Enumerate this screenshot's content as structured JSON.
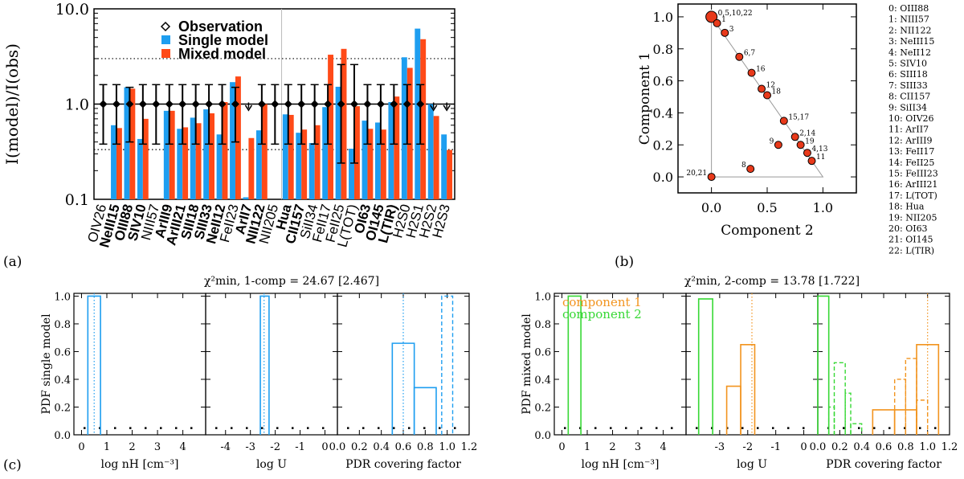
{
  "panel_labels": {
    "a": "(a)",
    "b": "(b)",
    "c": "(c)"
  },
  "colors": {
    "single": "#1e9ef0",
    "mixed": "#ff4a18",
    "comp1": "#f2941f",
    "comp2": "#37d835",
    "dot": "#e8391a"
  },
  "chart_data": [
    {
      "id": "a",
      "type": "bar",
      "title": "",
      "ylabel": "I(model)/I(obs)",
      "yscale": "log",
      "ylim": [
        0.1,
        10
      ],
      "yticks": [
        "0.1",
        "1.0",
        "10.0"
      ],
      "ytick_values": [
        0.1,
        1,
        10
      ],
      "dotted_lines": [
        0.333,
        3.0
      ],
      "legend": {
        "observation": "Observation",
        "single": "Single model",
        "mixed": "Mixed model"
      },
      "categories": [
        "OIV26",
        "NeIII15",
        "OIII88",
        "SIV10",
        "NIII57",
        "ArIII9",
        "ArIII21",
        "SIII18",
        "SIII33",
        "NeII12",
        "FeII23",
        "ArII7",
        "NII122",
        "NII205",
        "Hua",
        "CII157",
        "SiII34",
        "FeII17",
        "FeII25",
        "L(TOT)",
        "OI63",
        "OI145",
        "L(TIR)",
        "H2S0",
        "H2S1",
        "H2S2",
        "H2S3"
      ],
      "bold": [
        false,
        true,
        true,
        true,
        false,
        true,
        true,
        true,
        true,
        true,
        false,
        true,
        true,
        false,
        true,
        true,
        false,
        false,
        false,
        false,
        true,
        true,
        true,
        false,
        false,
        false,
        false
      ],
      "series": [
        {
          "name": "Single model",
          "values": [
            null,
            0.6,
            1.5,
            0.43,
            null,
            0.85,
            0.55,
            0.72,
            0.88,
            0.48,
            1.7,
            0.105,
            0.53,
            null,
            0.78,
            0.5,
            0.39,
            0.93,
            1.52,
            0.34,
            0.67,
            0.64,
            1.05,
            3.1,
            6.2,
            1.0,
            0.48
          ]
        },
        {
          "name": "Mixed model",
          "values": [
            null,
            0.56,
            1.45,
            0.7,
            null,
            0.85,
            0.57,
            0.63,
            0.8,
            1.05,
            1.95,
            0.44,
            1.0,
            null,
            0.77,
            0.54,
            0.6,
            3.3,
            3.8,
            0.95,
            0.55,
            0.54,
            1.2,
            2.4,
            4.8,
            0.75,
            0.33
          ]
        }
      ],
      "observation": {
        "name": "Observation",
        "errbar": [
          "0.38-1.6",
          "0.38-1.6",
          "0.4-1.5",
          "0.38-1.6",
          "0.38-1.6",
          "0.38-1.6",
          "0.38-1.6",
          "0.38-1.6",
          "0.38-1.6",
          "0.38-1.6",
          "0.4-1.5",
          "upper",
          "0.38-1.6",
          "0.38-1.6",
          "0.38-1.6",
          "0.38-1.6",
          "0.38-1.6",
          "0.38-1.6",
          "0.24-2.6",
          "0.24-2.6",
          "0.38-1.6",
          "0.38-1.6",
          "0.38-1.6",
          "0.38-1.6",
          "0.38-1.6",
          "upper",
          "upper"
        ]
      }
    },
    {
      "id": "b",
      "type": "scatter",
      "xlabel": "Component 2",
      "ylabel": "Component 1",
      "xlim": [
        -0.3,
        1.3
      ],
      "ylim": [
        -0.1,
        1.08
      ],
      "xticks": [
        "0.0",
        "0.5",
        "1.0"
      ],
      "xtick_values": [
        0,
        0.5,
        1
      ],
      "yticks": [
        "0.0",
        "0.2",
        "0.4",
        "0.6",
        "0.8",
        "1.0"
      ],
      "ytick_values": [
        0,
        0.2,
        0.4,
        0.6,
        0.8,
        1.0
      ],
      "points": [
        {
          "label": "0,5,10,22",
          "x": 0.0,
          "y": 1.0,
          "big": true
        },
        {
          "label": "1",
          "x": 0.05,
          "y": 0.96
        },
        {
          "label": "3",
          "x": 0.12,
          "y": 0.9
        },
        {
          "label": "6,7",
          "x": 0.25,
          "y": 0.75
        },
        {
          "label": "16",
          "x": 0.36,
          "y": 0.65
        },
        {
          "label": "12",
          "x": 0.45,
          "y": 0.55
        },
        {
          "label": "18",
          "x": 0.5,
          "y": 0.51
        },
        {
          "label": "15,17",
          "x": 0.65,
          "y": 0.35
        },
        {
          "label": "2,14",
          "x": 0.75,
          "y": 0.25
        },
        {
          "label": "19",
          "x": 0.8,
          "y": 0.2
        },
        {
          "label": "9",
          "x": 0.6,
          "y": 0.2
        },
        {
          "label": "4,13",
          "x": 0.86,
          "y": 0.15
        },
        {
          "label": "11",
          "x": 0.9,
          "y": 0.1
        },
        {
          "label": "8",
          "x": 0.35,
          "y": 0.05
        },
        {
          "label": "20,21",
          "x": 0.0,
          "y": 0.0
        }
      ],
      "legend_list": [
        "0: OIII88",
        "1: NIII57",
        "2: NII122",
        "3: NeIII15",
        "4: NeII12",
        "5: SIV10",
        "6: SIII18",
        "7: SIII33",
        "8: CII157",
        "9: SiII34",
        "10: OIV26",
        "11:   ArII7",
        "12: ArIII9",
        "13: FeII17",
        "14: FeII25",
        "15: FeIII23",
        "16: ArIII21",
        "17: L(TOT)",
        "18:   Hua",
        "19: NII205",
        "20: OI63",
        "21: OI145",
        "22: L(TIR)"
      ]
    },
    {
      "id": "c-left",
      "type": "histogram",
      "title": "χ²min, 1-comp = 24.67 [2.467]",
      "ylabel": "PDF single model",
      "ylim": [
        0,
        1.0
      ],
      "yticks": [
        "0.0",
        "0.2",
        "0.4",
        "0.6",
        "0.8",
        "1.0"
      ],
      "subpanels": [
        {
          "xlabel": "log nH [cm⁻³]",
          "xlim": [
            -0.3,
            4.9
          ],
          "xticks": [
            "0",
            "1",
            "2",
            "3",
            "4"
          ],
          "xtick_values": [
            0,
            1,
            2,
            3,
            4
          ],
          "bins": [
            {
              "from": 0.25,
              "to": 0.75,
              "value": 1.0
            }
          ],
          "vlines": [
            0.5
          ]
        },
        {
          "xlabel": "log U",
          "xlim": [
            -4.8,
            0.5
          ],
          "xticks": [
            "-4",
            "-3",
            "-2",
            "-1",
            "0"
          ],
          "xtick_values": [
            -4,
            -3,
            -2,
            -1,
            0
          ],
          "bins": [
            {
              "from": -2.6,
              "to": -2.25,
              "value": 1.0
            }
          ],
          "vlines": [
            -2.45
          ]
        },
        {
          "xlabel": "PDR covering factor",
          "xlim": [
            0.0,
            1.2
          ],
          "xticks": [
            "0.0",
            "0.2",
            "0.4",
            "0.6",
            "0.8",
            "1.0",
            "1.2"
          ],
          "xtick_values": [
            0,
            0.2,
            0.4,
            0.6,
            0.8,
            1.0,
            1.2
          ],
          "bins": [
            {
              "from": 0.5,
              "to": 0.7,
              "value": 0.66
            },
            {
              "from": 0.7,
              "to": 0.9,
              "value": 0.34
            }
          ],
          "vlines": [
            0.6
          ],
          "dashed_bins": [
            {
              "from": 0.95,
              "to": 1.05,
              "value": 1.0
            }
          ]
        }
      ]
    },
    {
      "id": "c-right",
      "type": "histogram",
      "title": "χ²min, 2-comp = 13.78 [1.722]",
      "ylabel": "PDF mixed model",
      "ylim": [
        0,
        1.0
      ],
      "yticks": [
        "0.0",
        "0.2",
        "0.4",
        "0.6",
        "0.8",
        "1.0"
      ],
      "legend": [
        "component 1",
        "component 2"
      ],
      "subpanels": [
        {
          "xlabel": "log nH [cm⁻³]",
          "xlim": [
            -0.3,
            4.9
          ],
          "xticks": [
            "0",
            "1",
            "2",
            "3",
            "4"
          ],
          "xtick_values": [
            0,
            1,
            2,
            3,
            4
          ],
          "bins": [
            {
              "from": 0.25,
              "to": 0.75,
              "value": 1.0,
              "comp": 2
            }
          ]
        },
        {
          "xlabel": "log U",
          "xlim": [
            -4.2,
            0.5
          ],
          "xticks": [
            "-3",
            "-2",
            "-1",
            "0"
          ],
          "xtick_values": [
            -3,
            -2,
            -1,
            0
          ],
          "bins": [
            {
              "from": -3.75,
              "to": -3.25,
              "value": 0.98,
              "comp": 2
            },
            {
              "from": -2.75,
              "to": -2.25,
              "value": 0.35,
              "comp": 1
            },
            {
              "from": -2.25,
              "to": -1.75,
              "value": 0.65,
              "comp": 1
            }
          ],
          "vlines": [
            {
              "x": -1.85,
              "comp": 1
            }
          ]
        },
        {
          "xlabel": "PDR covering factor",
          "xlim": [
            0.0,
            1.2
          ],
          "xticks": [
            "0.0",
            "0.2",
            "0.4",
            "0.6",
            "0.8",
            "1.0",
            "1.2"
          ],
          "xtick_values": [
            0,
            0.2,
            0.4,
            0.6,
            0.8,
            1.0,
            1.2
          ],
          "bins": [
            {
              "from": 0.0,
              "to": 0.1,
              "value": 1.0,
              "comp": 2
            },
            {
              "from": 0.5,
              "to": 0.7,
              "value": 0.18,
              "comp": 1
            },
            {
              "from": 0.7,
              "to": 0.9,
              "value": 0.18,
              "comp": 1
            },
            {
              "from": 0.9,
              "to": 1.1,
              "value": 0.65,
              "comp": 1
            }
          ],
          "dashed_bins": [
            {
              "from": 0.1,
              "to": 0.15,
              "value": 0.2,
              "comp": 2
            },
            {
              "from": 0.15,
              "to": 0.25,
              "value": 0.52,
              "comp": 2
            },
            {
              "from": 0.25,
              "to": 0.3,
              "value": 0.3,
              "comp": 2
            },
            {
              "from": 0.3,
              "to": 0.4,
              "value": 0.08,
              "comp": 2
            },
            {
              "from": 0.7,
              "to": 0.8,
              "value": 0.4,
              "comp": 1
            },
            {
              "from": 0.8,
              "to": 0.9,
              "value": 0.55,
              "comp": 1
            },
            {
              "from": 0.9,
              "to": 1.0,
              "value": 0.25,
              "comp": 1
            }
          ],
          "vlines": [
            {
              "x": 1.0,
              "comp": 1
            }
          ]
        }
      ]
    }
  ]
}
